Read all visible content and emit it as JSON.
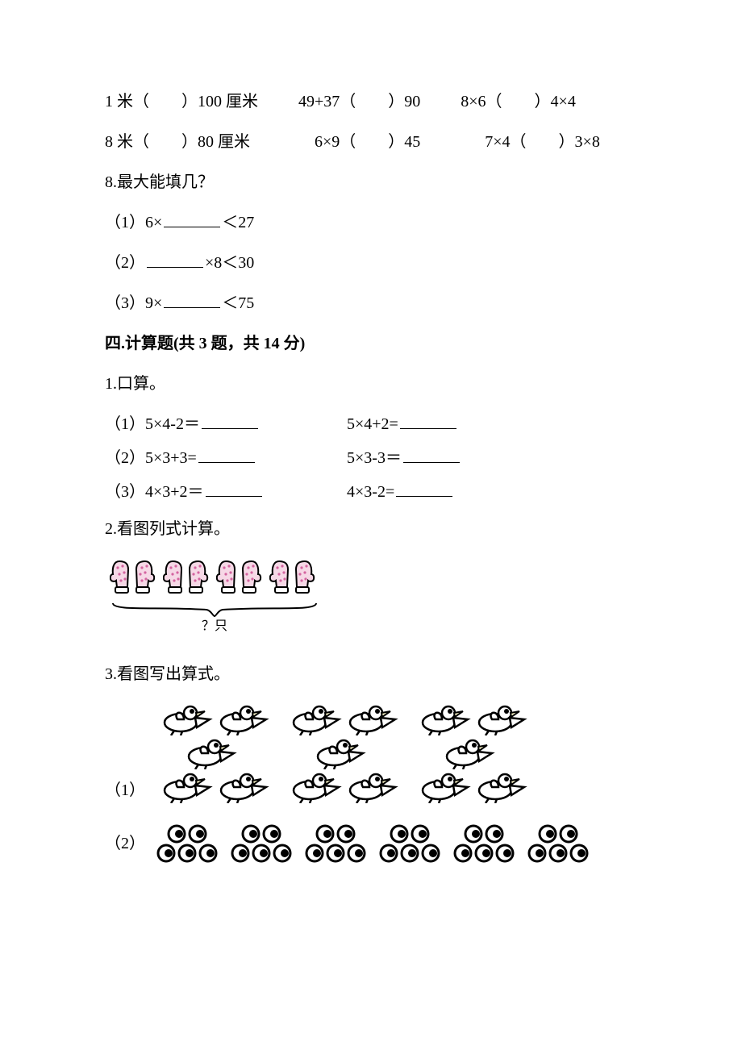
{
  "compare_rows": [
    [
      "1 米（　　）100 厘米",
      "49+37（　　）90",
      "8×6（　　）4×4"
    ],
    [
      "8 米（　　）80 厘米",
      "6×9（　　）45",
      "7×4（　　）3×8"
    ]
  ],
  "q8": {
    "title": "8.最大能填几？",
    "items": [
      {
        "prefix": "（1）6×",
        "suffix": "＜27"
      },
      {
        "prefix": "（2）",
        "mid": "×8＜30"
      },
      {
        "prefix": "（3）9×",
        "suffix": "＜75"
      }
    ]
  },
  "section4": {
    "heading": "四.计算题(共 3 题，共 14 分)",
    "q1": {
      "title": "1.口算。",
      "rows": [
        {
          "left_prefix": "（1）5×4-2＝",
          "right_prefix": "5×4+2="
        },
        {
          "left_prefix": "（2）5×3+3=",
          "right_prefix": "5×3-3＝"
        },
        {
          "left_prefix": "（3）4×3+2＝",
          "right_prefix": "4×3-2="
        }
      ]
    },
    "q2": {
      "title": "2.看图列式计算。",
      "brace_label": "？只",
      "mitten_pairs": 4,
      "mitten_fill": "#f6d8e6",
      "mitten_stroke": "#000000",
      "mitten_dot": "#d464a0"
    },
    "q3": {
      "title": "3.看图写出算式。",
      "sub1": {
        "label": "（1）",
        "groups": 3,
        "per_group": 5,
        "bird_body": "#ffffff",
        "bird_stroke": "#000000",
        "beak_fill": "#fffacc"
      },
      "sub2": {
        "label": "（2）",
        "groups": 6,
        "top_eyes": 2,
        "bottom_eyes": 3,
        "eye_outline": "#000000",
        "eye_white": "#ffffff",
        "pupil": "#000000"
      }
    }
  }
}
